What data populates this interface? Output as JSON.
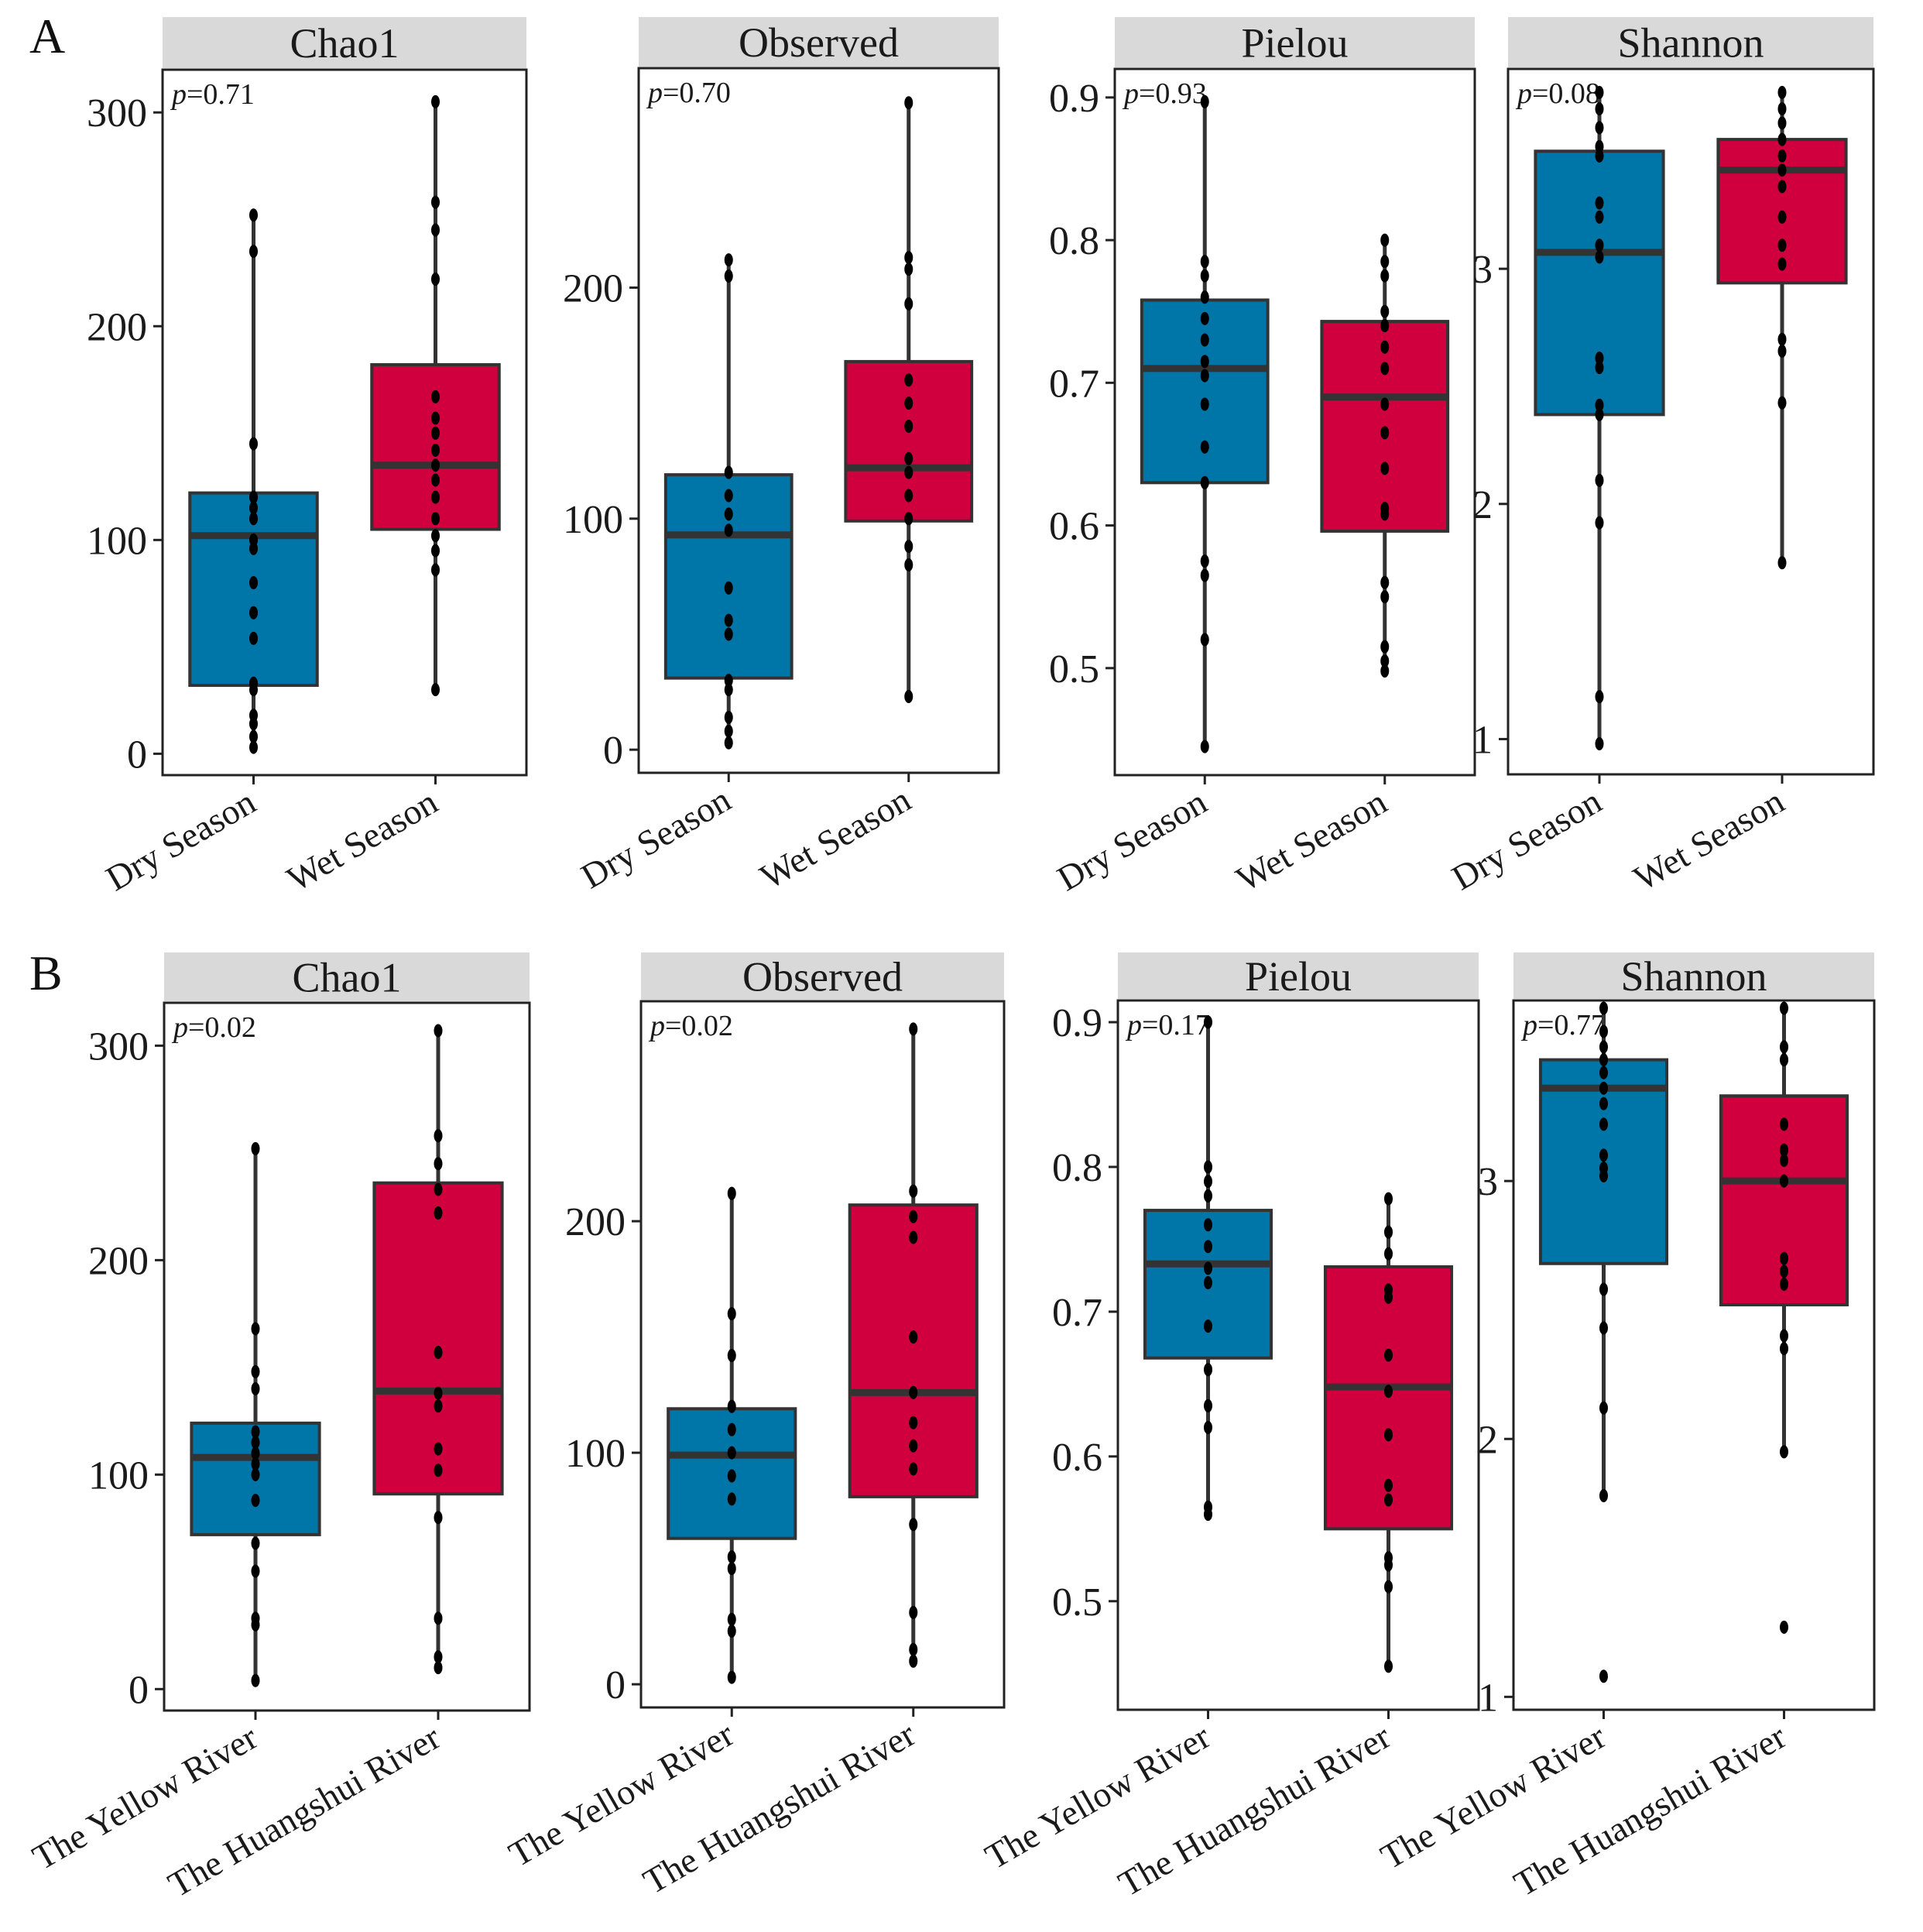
{
  "colors": {
    "group1": "#0075a8",
    "group2": "#d0003e",
    "box_outline": "#333333",
    "strip_bg": "#d9d9d9",
    "point": "#000000"
  },
  "rows": [
    {
      "label": "A",
      "categories": [
        "Dry Season",
        "Wet Season"
      ]
    },
    {
      "label": "B",
      "categories": [
        "The Yellow River",
        "The Huangshui River"
      ]
    }
  ],
  "chart_data": [
    {
      "type": "box",
      "row": 0,
      "title": "Chao1",
      "p_label": "p",
      "p_value": "=0.71",
      "ylim": [
        -10,
        320
      ],
      "yticks": [
        0,
        100,
        200,
        300
      ],
      "ytick_labels": [
        "0",
        "100",
        "200",
        "300"
      ],
      "boxes": [
        {
          "category": "Dry Season",
          "whisker_low": 3,
          "q1": 32,
          "median": 102,
          "q3": 122,
          "whisker_high": 252,
          "points": [
            3,
            8,
            14,
            18,
            30,
            33,
            54,
            66,
            80,
            96,
            100,
            110,
            115,
            120,
            145,
            235,
            252
          ]
        },
        {
          "category": "Wet Season",
          "whisker_low": 30,
          "q1": 105,
          "median": 135,
          "q3": 182,
          "whisker_high": 305,
          "points": [
            30,
            86,
            95,
            102,
            110,
            120,
            128,
            135,
            142,
            150,
            157,
            167,
            222,
            245,
            258,
            305
          ]
        }
      ]
    },
    {
      "type": "box",
      "row": 0,
      "title": "Observed",
      "p_label": "p",
      "p_value": "=0.70",
      "ylim": [
        -10,
        295
      ],
      "yticks": [
        0,
        100,
        200
      ],
      "ytick_labels": [
        "0",
        "100",
        "200"
      ],
      "boxes": [
        {
          "category": "Dry Season",
          "whisker_low": 3,
          "q1": 31,
          "median": 93,
          "q3": 119,
          "whisker_high": 212,
          "points": [
            3,
            8,
            14,
            26,
            30,
            50,
            56,
            70,
            95,
            102,
            110,
            120,
            205,
            212
          ]
        },
        {
          "category": "Wet Season",
          "whisker_low": 23,
          "q1": 99,
          "median": 122,
          "q3": 168,
          "whisker_high": 280,
          "points": [
            23,
            80,
            88,
            100,
            110,
            120,
            126,
            140,
            150,
            160,
            193,
            208,
            213,
            280
          ]
        }
      ]
    },
    {
      "type": "box",
      "row": 0,
      "title": "Pielou",
      "p_label": "p",
      "p_value": "=0.93",
      "ylim": [
        0.425,
        0.92
      ],
      "yticks": [
        0.5,
        0.6,
        0.7,
        0.8,
        0.9
      ],
      "ytick_labels": [
        "0.5",
        "0.6",
        "0.7",
        "0.8",
        "0.9"
      ],
      "boxes": [
        {
          "category": "Dry Season",
          "whisker_low": 0.445,
          "q1": 0.63,
          "median": 0.71,
          "q3": 0.758,
          "whisker_high": 0.897,
          "points": [
            0.445,
            0.52,
            0.565,
            0.575,
            0.63,
            0.655,
            0.685,
            0.705,
            0.715,
            0.73,
            0.745,
            0.76,
            0.775,
            0.785,
            0.897
          ]
        },
        {
          "category": "Wet Season",
          "whisker_low": 0.498,
          "q1": 0.596,
          "median": 0.69,
          "q3": 0.743,
          "whisker_high": 0.8,
          "points": [
            0.498,
            0.505,
            0.515,
            0.55,
            0.56,
            0.608,
            0.612,
            0.64,
            0.665,
            0.685,
            0.71,
            0.725,
            0.74,
            0.75,
            0.775,
            0.785,
            0.8
          ]
        }
      ]
    },
    {
      "type": "box",
      "row": 0,
      "title": "Shannon",
      "p_label": "p",
      "p_value": "=0.08",
      "ylim": [
        0.85,
        3.85
      ],
      "yticks": [
        1,
        2,
        3
      ],
      "ytick_labels": [
        "1",
        "2",
        "3"
      ],
      "boxes": [
        {
          "category": "Dry Season",
          "whisker_low": 0.98,
          "q1": 2.38,
          "median": 3.07,
          "q3": 3.5,
          "whisker_high": 3.75,
          "points": [
            0.98,
            1.18,
            1.92,
            2.1,
            2.38,
            2.42,
            2.58,
            2.62,
            3.05,
            3.1,
            3.22,
            3.28,
            3.48,
            3.52,
            3.6,
            3.68,
            3.75
          ]
        },
        {
          "category": "Wet Season",
          "whisker_low": 1.75,
          "q1": 2.94,
          "median": 3.42,
          "q3": 3.55,
          "whisker_high": 3.75,
          "points": [
            1.75,
            2.43,
            2.65,
            2.7,
            3.02,
            3.1,
            3.22,
            3.35,
            3.42,
            3.48,
            3.55,
            3.62,
            3.68,
            3.75
          ]
        }
      ]
    },
    {
      "type": "box",
      "row": 1,
      "title": "Chao1",
      "p_label": "p",
      "p_value": "=0.02",
      "ylim": [
        -10,
        320
      ],
      "yticks": [
        0,
        100,
        200,
        300
      ],
      "ytick_labels": [
        "0",
        "100",
        "200",
        "300"
      ],
      "boxes": [
        {
          "category": "The Yellow River",
          "whisker_low": 4,
          "q1": 72,
          "median": 108,
          "q3": 124,
          "whisker_high": 252,
          "points": [
            4,
            30,
            33,
            55,
            68,
            88,
            100,
            105,
            110,
            115,
            120,
            140,
            148,
            168,
            252
          ]
        },
        {
          "category": "The Huangshui River",
          "whisker_low": 10,
          "q1": 91,
          "median": 139,
          "q3": 236,
          "whisker_high": 307,
          "points": [
            10,
            15,
            33,
            80,
            102,
            112,
            132,
            138,
            157,
            222,
            233,
            245,
            258,
            307
          ]
        }
      ]
    },
    {
      "type": "box",
      "row": 1,
      "title": "Observed",
      "p_label": "p",
      "p_value": "=0.02",
      "ylim": [
        -10,
        295
      ],
      "yticks": [
        0,
        100,
        200
      ],
      "ytick_labels": [
        "0",
        "100",
        "200"
      ],
      "boxes": [
        {
          "category": "The Yellow River",
          "whisker_low": 3,
          "q1": 63,
          "median": 99,
          "q3": 119,
          "whisker_high": 212,
          "points": [
            3,
            23,
            28,
            50,
            55,
            80,
            90,
            100,
            110,
            120,
            142,
            160,
            212
          ]
        },
        {
          "category": "The Huangshui River",
          "whisker_low": 10,
          "q1": 81,
          "median": 126,
          "q3": 207,
          "whisker_high": 283,
          "points": [
            10,
            15,
            31,
            69,
            93,
            103,
            113,
            126,
            150,
            193,
            202,
            213,
            283
          ]
        }
      ]
    },
    {
      "type": "box",
      "row": 1,
      "title": "Pielou",
      "p_label": "p",
      "p_value": "=0.17",
      "ylim": [
        0.425,
        0.915
      ],
      "yticks": [
        0.5,
        0.6,
        0.7,
        0.8,
        0.9
      ],
      "ytick_labels": [
        "0.5",
        "0.6",
        "0.7",
        "0.8",
        "0.9"
      ],
      "boxes": [
        {
          "category": "The Yellow River",
          "whisker_low": 0.56,
          "q1": 0.668,
          "median": 0.733,
          "q3": 0.77,
          "whisker_high": 0.9,
          "points": [
            0.56,
            0.565,
            0.62,
            0.635,
            0.66,
            0.69,
            0.72,
            0.73,
            0.745,
            0.76,
            0.78,
            0.79,
            0.8,
            0.9
          ]
        },
        {
          "category": "The Huangshui River",
          "whisker_low": 0.455,
          "q1": 0.55,
          "median": 0.648,
          "q3": 0.731,
          "whisker_high": 0.778,
          "points": [
            0.455,
            0.51,
            0.525,
            0.53,
            0.57,
            0.58,
            0.615,
            0.645,
            0.67,
            0.71,
            0.715,
            0.74,
            0.755,
            0.778
          ]
        }
      ]
    },
    {
      "type": "box",
      "row": 1,
      "title": "Shannon",
      "p_label": "p",
      "p_value": "=0.77",
      "ylim": [
        0.95,
        3.7
      ],
      "yticks": [
        1,
        2,
        3
      ],
      "ytick_labels": [
        "1",
        "2",
        "3"
      ],
      "boxes": [
        {
          "category": "The Yellow River",
          "whisker_low": 1.78,
          "q1": 2.68,
          "median": 3.36,
          "q3": 3.47,
          "whisker_high": 3.67,
          "points": [
            1.08,
            1.78,
            2.12,
            2.43,
            2.58,
            3.02,
            3.05,
            3.1,
            3.22,
            3.3,
            3.36,
            3.42,
            3.47,
            3.52,
            3.58,
            3.67
          ]
        },
        {
          "category": "The Huangshui River",
          "whisker_low": 1.95,
          "q1": 2.52,
          "median": 3.0,
          "q3": 3.33,
          "whisker_high": 3.67,
          "points": [
            1.27,
            1.95,
            2.35,
            2.4,
            2.6,
            2.65,
            2.7,
            3.0,
            3.08,
            3.12,
            3.22,
            3.47,
            3.52,
            3.67
          ]
        }
      ]
    }
  ]
}
